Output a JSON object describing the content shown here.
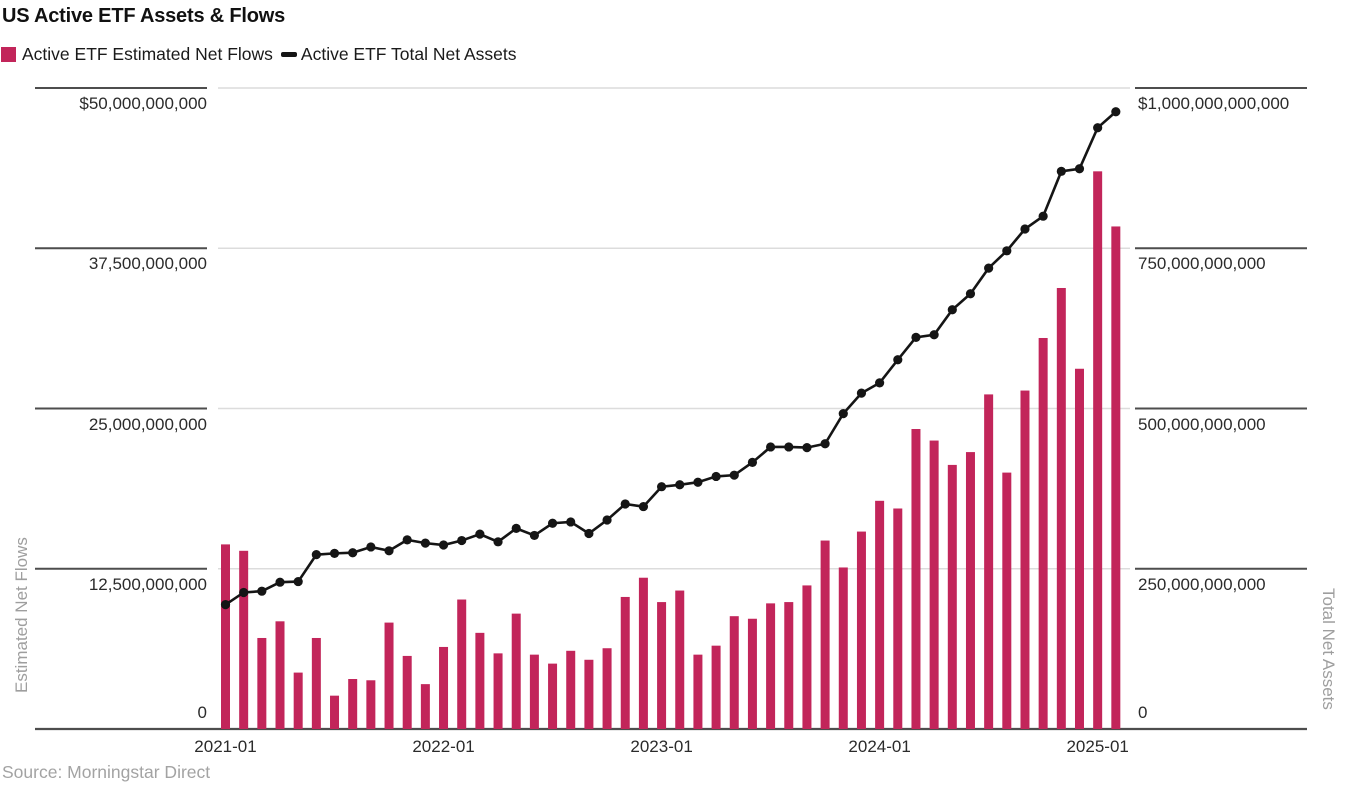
{
  "header": {
    "title": "US Active ETF Assets & Flows"
  },
  "legend": {
    "items": [
      {
        "label": "Active ETF Estimated Net Flows",
        "swatch": "square",
        "color": "#C2255A"
      },
      {
        "label": "Active ETF Total Net Assets",
        "swatch": "dash",
        "color": "#151515"
      }
    ]
  },
  "source": "Source: Morningstar Direct",
  "colors": {
    "bar": "#C2255A",
    "line": "#151515",
    "plot_gridline": "#dcdcdc",
    "axis_dark": "#4d4d4d",
    "tick_text": "#2b2b2b",
    "axis_title_text": "#9e9e9e"
  },
  "chart_data": {
    "type": "bar",
    "title": "US Active ETF Assets & Flows",
    "x": [
      "2021-01",
      "2021-02",
      "2021-03",
      "2021-04",
      "2021-05",
      "2021-06",
      "2021-07",
      "2021-08",
      "2021-09",
      "2021-10",
      "2021-11",
      "2021-12",
      "2022-01",
      "2022-02",
      "2022-03",
      "2022-04",
      "2022-05",
      "2022-06",
      "2022-07",
      "2022-08",
      "2022-09",
      "2022-10",
      "2022-11",
      "2022-12",
      "2023-01",
      "2023-02",
      "2023-03",
      "2023-04",
      "2023-05",
      "2023-06",
      "2023-07",
      "2023-08",
      "2023-09",
      "2023-10",
      "2023-11",
      "2023-12",
      "2024-01",
      "2024-02",
      "2024-03",
      "2024-04",
      "2024-05",
      "2024-06",
      "2024-07",
      "2024-08",
      "2024-09",
      "2024-10",
      "2024-11",
      "2024-12",
      "2025-01",
      "2025-02"
    ],
    "series": [
      {
        "name": "Active ETF Estimated Net Flows",
        "type": "bar",
        "axis": "left",
        "color": "#C2255A",
        "values": [
          14400000000,
          13900000000,
          7100000000,
          8400000000,
          4400000000,
          7100000000,
          2600000000,
          3900000000,
          3800000000,
          8300000000,
          5700000000,
          3500000000,
          6400000000,
          10100000000,
          7500000000,
          5900000000,
          9000000000,
          5800000000,
          5100000000,
          6100000000,
          5400000000,
          6300000000,
          10300000000,
          11800000000,
          9900000000,
          10800000000,
          5800000000,
          6500000000,
          8800000000,
          8600000000,
          9800000000,
          9900000000,
          11200000000,
          14700000000,
          12600000000,
          15400000000,
          17800000000,
          17200000000,
          23400000000,
          22500000000,
          20600000000,
          21600000000,
          26100000000,
          20000000000,
          26400000000,
          30500000000,
          34400000000,
          28100000000,
          43500000000,
          39200000000
        ]
      },
      {
        "name": "Active ETF Total Net Assets",
        "type": "line",
        "axis": "right",
        "color": "#151515",
        "values": [
          194000000000,
          213000000000,
          215000000000,
          229000000000,
          230000000000,
          272000000000,
          274000000000,
          275000000000,
          284000000000,
          278000000000,
          295000000000,
          290000000000,
          287000000000,
          294000000000,
          304000000000,
          292000000000,
          313000000000,
          302000000000,
          321000000000,
          323000000000,
          305000000000,
          326000000000,
          351000000000,
          347000000000,
          378000000000,
          381000000000,
          385000000000,
          394000000000,
          396000000000,
          416000000000,
          440000000000,
          440000000000,
          439000000000,
          445000000000,
          492000000000,
          524000000000,
          540000000000,
          576000000000,
          611000000000,
          615000000000,
          654000000000,
          679000000000,
          719000000000,
          746000000000,
          780000000000,
          800000000000,
          870000000000,
          874000000000,
          938000000000,
          963000000000
        ]
      }
    ],
    "left_axis": {
      "title": "Estimated Net Flows",
      "range": [
        0,
        50000000000
      ],
      "tick_labels": [
        "$50,000,000,000",
        "37,500,000,000",
        "25,000,000,000",
        "12,500,000,000",
        "0"
      ]
    },
    "right_axis": {
      "title": "Total Net Assets",
      "range": [
        0,
        1000000000000
      ],
      "tick_labels": [
        "$1,000,000,000,000",
        "750,000,000,000",
        "500,000,000,000",
        "250,000,000,000",
        "0"
      ]
    },
    "x_axis": {
      "tick_labels": [
        "2021-01",
        "2022-01",
        "2023-01",
        "2024-01",
        "2025-01"
      ]
    },
    "grid": true,
    "legend_position": "top-left"
  }
}
